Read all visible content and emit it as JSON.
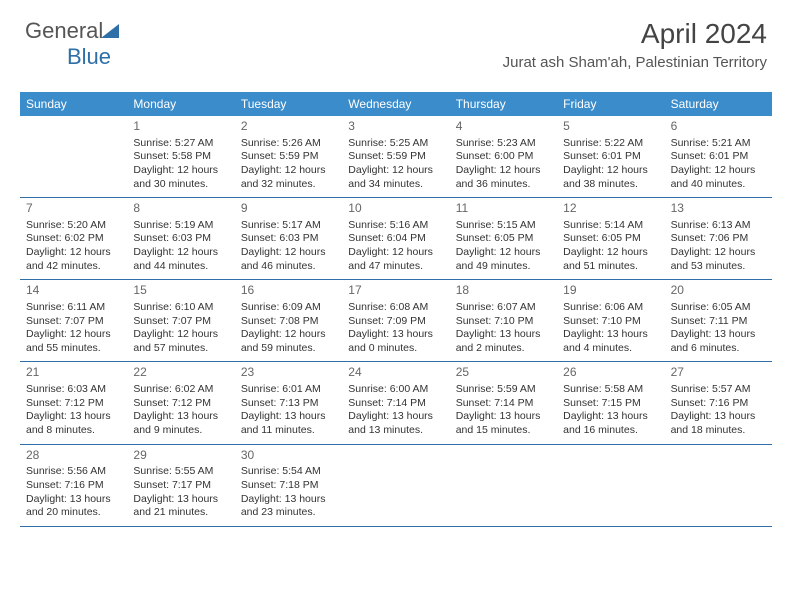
{
  "logo": {
    "text1": "General",
    "text2": "Blue"
  },
  "header": {
    "title": "April 2024",
    "subtitle": "Jurat ash Sham'ah, Palestinian Territory"
  },
  "colors": {
    "header_bg": "#3b8ccb",
    "header_text": "#ffffff",
    "rule": "#2f6fa7",
    "body_text": "#333333",
    "daynum": "#666666"
  },
  "day_names": [
    "Sunday",
    "Monday",
    "Tuesday",
    "Wednesday",
    "Thursday",
    "Friday",
    "Saturday"
  ],
  "weeks": [
    [
      null,
      {
        "n": "1",
        "sr": "Sunrise: 5:27 AM",
        "ss": "Sunset: 5:58 PM",
        "d1": "Daylight: 12 hours",
        "d2": "and 30 minutes."
      },
      {
        "n": "2",
        "sr": "Sunrise: 5:26 AM",
        "ss": "Sunset: 5:59 PM",
        "d1": "Daylight: 12 hours",
        "d2": "and 32 minutes."
      },
      {
        "n": "3",
        "sr": "Sunrise: 5:25 AM",
        "ss": "Sunset: 5:59 PM",
        "d1": "Daylight: 12 hours",
        "d2": "and 34 minutes."
      },
      {
        "n": "4",
        "sr": "Sunrise: 5:23 AM",
        "ss": "Sunset: 6:00 PM",
        "d1": "Daylight: 12 hours",
        "d2": "and 36 minutes."
      },
      {
        "n": "5",
        "sr": "Sunrise: 5:22 AM",
        "ss": "Sunset: 6:01 PM",
        "d1": "Daylight: 12 hours",
        "d2": "and 38 minutes."
      },
      {
        "n": "6",
        "sr": "Sunrise: 5:21 AM",
        "ss": "Sunset: 6:01 PM",
        "d1": "Daylight: 12 hours",
        "d2": "and 40 minutes."
      }
    ],
    [
      {
        "n": "7",
        "sr": "Sunrise: 5:20 AM",
        "ss": "Sunset: 6:02 PM",
        "d1": "Daylight: 12 hours",
        "d2": "and 42 minutes."
      },
      {
        "n": "8",
        "sr": "Sunrise: 5:19 AM",
        "ss": "Sunset: 6:03 PM",
        "d1": "Daylight: 12 hours",
        "d2": "and 44 minutes."
      },
      {
        "n": "9",
        "sr": "Sunrise: 5:17 AM",
        "ss": "Sunset: 6:03 PM",
        "d1": "Daylight: 12 hours",
        "d2": "and 46 minutes."
      },
      {
        "n": "10",
        "sr": "Sunrise: 5:16 AM",
        "ss": "Sunset: 6:04 PM",
        "d1": "Daylight: 12 hours",
        "d2": "and 47 minutes."
      },
      {
        "n": "11",
        "sr": "Sunrise: 5:15 AM",
        "ss": "Sunset: 6:05 PM",
        "d1": "Daylight: 12 hours",
        "d2": "and 49 minutes."
      },
      {
        "n": "12",
        "sr": "Sunrise: 5:14 AM",
        "ss": "Sunset: 6:05 PM",
        "d1": "Daylight: 12 hours",
        "d2": "and 51 minutes."
      },
      {
        "n": "13",
        "sr": "Sunrise: 6:13 AM",
        "ss": "Sunset: 7:06 PM",
        "d1": "Daylight: 12 hours",
        "d2": "and 53 minutes."
      }
    ],
    [
      {
        "n": "14",
        "sr": "Sunrise: 6:11 AM",
        "ss": "Sunset: 7:07 PM",
        "d1": "Daylight: 12 hours",
        "d2": "and 55 minutes."
      },
      {
        "n": "15",
        "sr": "Sunrise: 6:10 AM",
        "ss": "Sunset: 7:07 PM",
        "d1": "Daylight: 12 hours",
        "d2": "and 57 minutes."
      },
      {
        "n": "16",
        "sr": "Sunrise: 6:09 AM",
        "ss": "Sunset: 7:08 PM",
        "d1": "Daylight: 12 hours",
        "d2": "and 59 minutes."
      },
      {
        "n": "17",
        "sr": "Sunrise: 6:08 AM",
        "ss": "Sunset: 7:09 PM",
        "d1": "Daylight: 13 hours",
        "d2": "and 0 minutes."
      },
      {
        "n": "18",
        "sr": "Sunrise: 6:07 AM",
        "ss": "Sunset: 7:10 PM",
        "d1": "Daylight: 13 hours",
        "d2": "and 2 minutes."
      },
      {
        "n": "19",
        "sr": "Sunrise: 6:06 AM",
        "ss": "Sunset: 7:10 PM",
        "d1": "Daylight: 13 hours",
        "d2": "and 4 minutes."
      },
      {
        "n": "20",
        "sr": "Sunrise: 6:05 AM",
        "ss": "Sunset: 7:11 PM",
        "d1": "Daylight: 13 hours",
        "d2": "and 6 minutes."
      }
    ],
    [
      {
        "n": "21",
        "sr": "Sunrise: 6:03 AM",
        "ss": "Sunset: 7:12 PM",
        "d1": "Daylight: 13 hours",
        "d2": "and 8 minutes."
      },
      {
        "n": "22",
        "sr": "Sunrise: 6:02 AM",
        "ss": "Sunset: 7:12 PM",
        "d1": "Daylight: 13 hours",
        "d2": "and 9 minutes."
      },
      {
        "n": "23",
        "sr": "Sunrise: 6:01 AM",
        "ss": "Sunset: 7:13 PM",
        "d1": "Daylight: 13 hours",
        "d2": "and 11 minutes."
      },
      {
        "n": "24",
        "sr": "Sunrise: 6:00 AM",
        "ss": "Sunset: 7:14 PM",
        "d1": "Daylight: 13 hours",
        "d2": "and 13 minutes."
      },
      {
        "n": "25",
        "sr": "Sunrise: 5:59 AM",
        "ss": "Sunset: 7:14 PM",
        "d1": "Daylight: 13 hours",
        "d2": "and 15 minutes."
      },
      {
        "n": "26",
        "sr": "Sunrise: 5:58 AM",
        "ss": "Sunset: 7:15 PM",
        "d1": "Daylight: 13 hours",
        "d2": "and 16 minutes."
      },
      {
        "n": "27",
        "sr": "Sunrise: 5:57 AM",
        "ss": "Sunset: 7:16 PM",
        "d1": "Daylight: 13 hours",
        "d2": "and 18 minutes."
      }
    ],
    [
      {
        "n": "28",
        "sr": "Sunrise: 5:56 AM",
        "ss": "Sunset: 7:16 PM",
        "d1": "Daylight: 13 hours",
        "d2": "and 20 minutes."
      },
      {
        "n": "29",
        "sr": "Sunrise: 5:55 AM",
        "ss": "Sunset: 7:17 PM",
        "d1": "Daylight: 13 hours",
        "d2": "and 21 minutes."
      },
      {
        "n": "30",
        "sr": "Sunrise: 5:54 AM",
        "ss": "Sunset: 7:18 PM",
        "d1": "Daylight: 13 hours",
        "d2": "and 23 minutes."
      },
      null,
      null,
      null,
      null
    ]
  ]
}
